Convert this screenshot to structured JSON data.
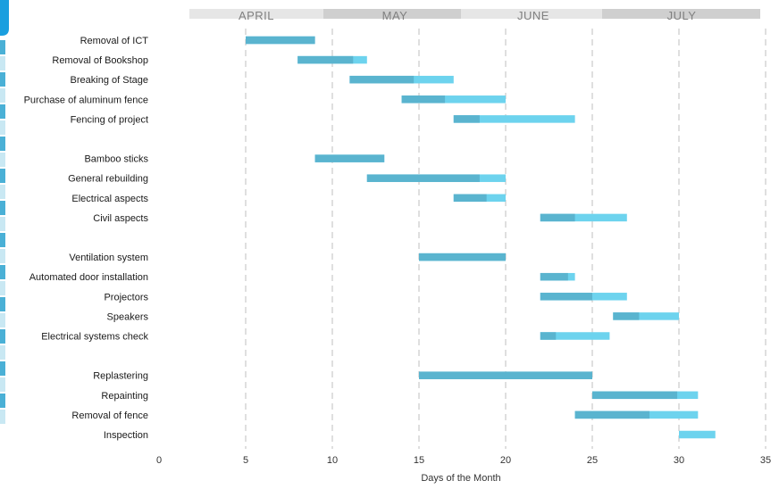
{
  "chart_data": {
    "type": "bar",
    "subtype": "gantt",
    "xlabel": "Days of the Month",
    "xlim": [
      0,
      35
    ],
    "xticks": [
      0,
      5,
      10,
      15,
      20,
      25,
      30,
      35
    ],
    "grid": "vertical dashed",
    "legend": "none",
    "colors": {
      "progress": "#5ab4cf",
      "remaining": "#6dd3ee",
      "grid": "#bfbfbf",
      "month_band_light": "#e6e6e6",
      "month_band_dark": "#cfcfcf",
      "month_text": "#808080",
      "left_stripe_dark": "#4ab0d6",
      "left_stripe_light": "#c9e8f3",
      "corner_badge": "#1a9fdf"
    },
    "months": [
      "APRIL",
      "MAY",
      "JUNE",
      "JULY"
    ],
    "tasks": [
      {
        "name": "Removal of ICT",
        "start": 5,
        "progress_end": 9,
        "end": 9
      },
      {
        "name": "Removal of Bookshop",
        "start": 8,
        "progress_end": 11.2,
        "end": 12
      },
      {
        "name": "Breaking of Stage",
        "start": 11,
        "progress_end": 14.7,
        "end": 17
      },
      {
        "name": "Purchase of aluminum fence",
        "start": 14,
        "progress_end": 16.5,
        "end": 20
      },
      {
        "name": "Fencing of project",
        "start": 17,
        "progress_end": 18.5,
        "end": 24
      },
      {
        "name": "",
        "gap": true
      },
      {
        "name": "Bamboo sticks",
        "start": 9,
        "progress_end": 13,
        "end": 13
      },
      {
        "name": "General rebuilding",
        "start": 12,
        "progress_end": 18.5,
        "end": 20
      },
      {
        "name": "Electrical aspects",
        "start": 17,
        "progress_end": 18.9,
        "end": 20
      },
      {
        "name": "Civil aspects",
        "start": 22,
        "progress_end": 24,
        "end": 27
      },
      {
        "name": "",
        "gap": true
      },
      {
        "name": "Ventilation system",
        "start": 15,
        "progress_end": 20,
        "end": 20
      },
      {
        "name": "Automated door installation",
        "start": 22,
        "progress_end": 23.6,
        "end": 24
      },
      {
        "name": "Projectors",
        "start": 22,
        "progress_end": 25,
        "end": 27
      },
      {
        "name": "Speakers",
        "start": 26.2,
        "progress_end": 27.7,
        "end": 30
      },
      {
        "name": "Electrical systems check",
        "start": 22,
        "progress_end": 22.9,
        "end": 26
      },
      {
        "name": "",
        "gap": true
      },
      {
        "name": "Replastering",
        "start": 15,
        "progress_end": 25,
        "end": 25
      },
      {
        "name": "Repainting",
        "start": 25,
        "progress_end": 29.9,
        "end": 31.1
      },
      {
        "name": "Removal of fence",
        "start": 24,
        "progress_end": 28.3,
        "end": 31.1
      },
      {
        "name": "Inspection",
        "start": 30,
        "progress_end": 30,
        "end": 32.1
      }
    ]
  }
}
